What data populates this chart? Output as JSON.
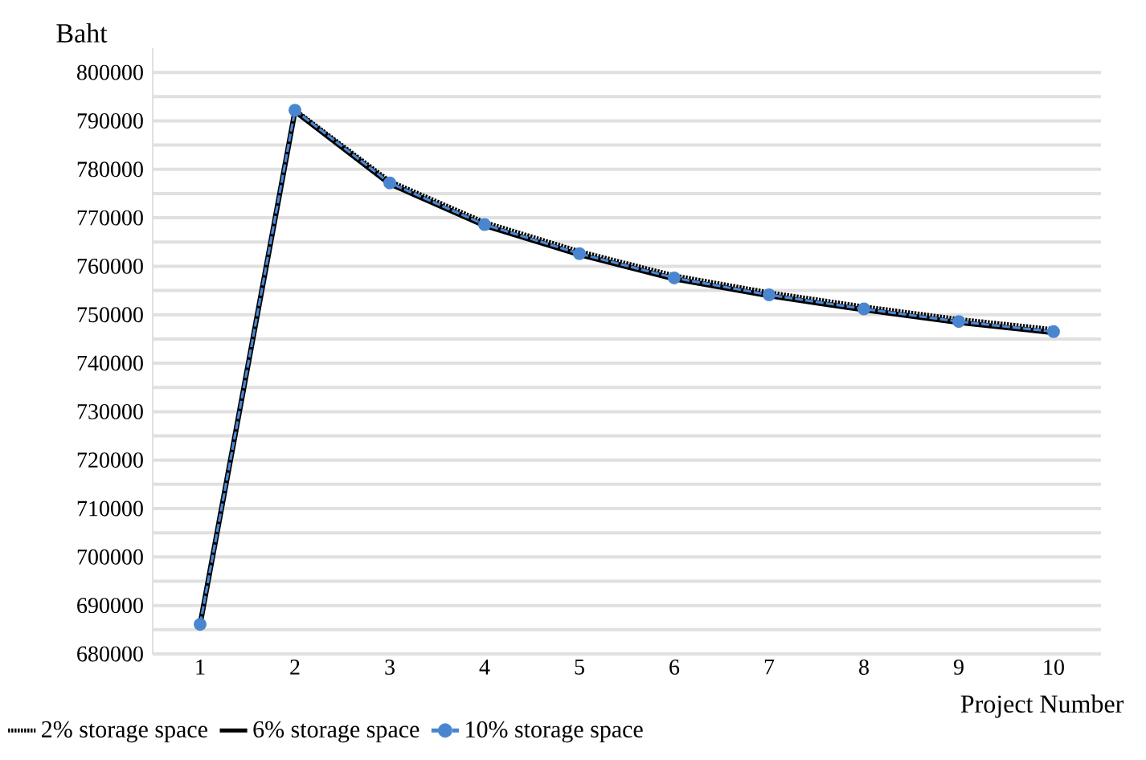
{
  "chart_data": {
    "type": "line",
    "xlabel": "Project Number",
    "ylabel": "Baht",
    "categories": [
      "1",
      "2",
      "3",
      "4",
      "5",
      "6",
      "7",
      "8",
      "9",
      "10"
    ],
    "series": [
      {
        "name": "2% storage space",
        "color": "#000000",
        "line_style": "dotted",
        "values": [
          686100,
          792400,
          777700,
          769200,
          763200,
          758200,
          754700,
          751800,
          749200,
          747100
        ]
      },
      {
        "name": "6% storage space",
        "color": "#000000",
        "line_style": "solid",
        "values": [
          686100,
          792000,
          777000,
          768400,
          762400,
          757400,
          753900,
          751000,
          748400,
          746300
        ]
      },
      {
        "name": "10% storage space",
        "color": "#4a86d0",
        "line_style": "dashed",
        "marker": "circle",
        "values": [
          686100,
          792200,
          777200,
          768600,
          762600,
          757600,
          754100,
          751200,
          748600,
          746500
        ]
      }
    ],
    "ylim": [
      680000,
      805000
    ],
    "yticks": [
      680000,
      690000,
      700000,
      710000,
      720000,
      730000,
      740000,
      750000,
      760000,
      770000,
      780000,
      790000,
      800000
    ],
    "grid": "y",
    "legend": "bottom left"
  }
}
